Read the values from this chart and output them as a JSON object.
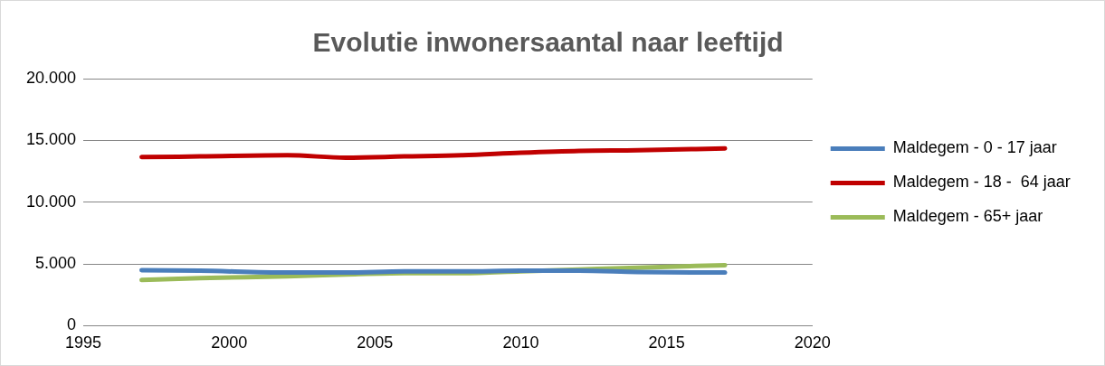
{
  "chart_data": {
    "type": "line",
    "title": "Evolutie inwonersaantal naar leeftijd",
    "x": [
      1997,
      1999,
      2002,
      2004,
      2006,
      2008,
      2010,
      2012,
      2014,
      2017
    ],
    "series": [
      {
        "name": "Maldegem - 0 - 17 jaar",
        "color": "#4a7ebb",
        "values": [
          4500,
          4450,
          4300,
          4300,
          4400,
          4400,
          4450,
          4450,
          4350,
          4300
        ]
      },
      {
        "name": "Maldegem - 18 -  64 jaar",
        "color": "#c00000",
        "values": [
          13650,
          13700,
          13800,
          13600,
          13700,
          13800,
          14000,
          14150,
          14200,
          14350
        ]
      },
      {
        "name": "Maldegem - 65+ jaar",
        "color": "#9bbb59",
        "values": [
          3700,
          3850,
          4000,
          4150,
          4250,
          4250,
          4400,
          4550,
          4700,
          4900
        ]
      }
    ],
    "xlim": [
      1995,
      2020
    ],
    "xticks": [
      1995,
      2000,
      2005,
      2010,
      2015,
      2020
    ],
    "ylim": [
      0,
      20000
    ],
    "yticks": [
      0,
      {
        "value": 5000,
        "label": "5.000"
      },
      {
        "value": 10000,
        "label": "10.000"
      },
      {
        "value": 15000,
        "label": "15.000"
      },
      {
        "value": 20000,
        "label": "20.000"
      }
    ],
    "grid": "y",
    "legend": "right",
    "marker": "none",
    "line_style": "solid"
  }
}
